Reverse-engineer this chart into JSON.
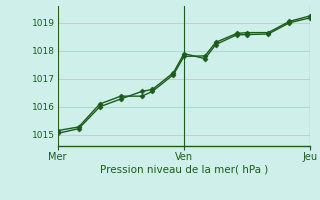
{
  "title": "Pression niveau de la mer( hPa )",
  "background_color": "#cff0ea",
  "grid_color": "#c8b8c8",
  "line_color": "#1a5c1a",
  "x_ticks": [
    0,
    48,
    96
  ],
  "x_tick_labels": [
    "Mer",
    "Ven",
    "Jeu"
  ],
  "ylim": [
    1014.6,
    1019.6
  ],
  "yticks": [
    1015,
    1016,
    1017,
    1018,
    1019
  ],
  "line1_x": [
    0,
    8,
    16,
    24,
    32,
    36,
    44,
    48,
    56,
    60,
    68,
    72,
    80,
    88,
    96
  ],
  "line1_y": [
    1015.15,
    1015.28,
    1016.1,
    1016.38,
    1016.38,
    1016.55,
    1017.15,
    1017.8,
    1017.82,
    1018.3,
    1018.62,
    1018.65,
    1018.65,
    1019.05,
    1019.25
  ],
  "line2_x": [
    0,
    8,
    16,
    24,
    32,
    36,
    44,
    48,
    56,
    60,
    68,
    72,
    80,
    88,
    96
  ],
  "line2_y": [
    1015.05,
    1015.22,
    1016.0,
    1016.28,
    1016.55,
    1016.62,
    1017.22,
    1017.9,
    1017.72,
    1018.22,
    1018.57,
    1018.58,
    1018.6,
    1019.0,
    1019.18
  ],
  "marker": "D",
  "marker_size": 2.5,
  "linewidth": 1.0
}
